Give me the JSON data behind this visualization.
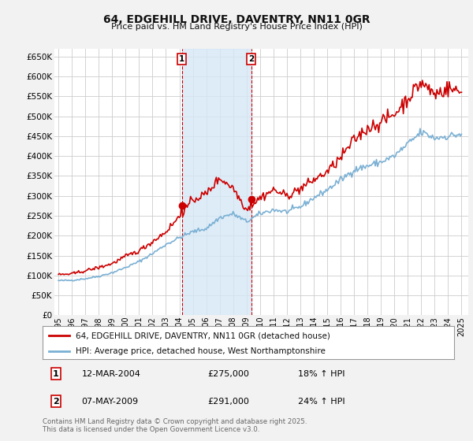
{
  "title": "64, EDGEHILL DRIVE, DAVENTRY, NN11 0GR",
  "subtitle": "Price paid vs. HM Land Registry's House Price Index (HPI)",
  "ylabel_ticks": [
    "£0",
    "£50K",
    "£100K",
    "£150K",
    "£200K",
    "£250K",
    "£300K",
    "£350K",
    "£400K",
    "£450K",
    "£500K",
    "£550K",
    "£600K",
    "£650K"
  ],
  "ytick_values": [
    0,
    50000,
    100000,
    150000,
    200000,
    250000,
    300000,
    350000,
    400000,
    450000,
    500000,
    550000,
    600000,
    650000
  ],
  "ylim": [
    0,
    670000
  ],
  "xlim_left": 1994.7,
  "xlim_right": 2025.5,
  "background_color": "#f2f2f2",
  "plot_bg_color": "#ffffff",
  "grid_color": "#cccccc",
  "red_line_color": "#cc0000",
  "blue_line_color": "#7ab0d4",
  "shade_color": "#d6e8f5",
  "legend_label_red": "64, EDGEHILL DRIVE, DAVENTRY, NN11 0GR (detached house)",
  "legend_label_blue": "HPI: Average price, detached house, West Northamptonshire",
  "marker1_date": "12-MAR-2004",
  "marker1_price": "£275,000",
  "marker1_pct": "18% ↑ HPI",
  "marker2_date": "07-MAY-2009",
  "marker2_price": "£291,000",
  "marker2_pct": "24% ↑ HPI",
  "footer": "Contains HM Land Registry data © Crown copyright and database right 2025.\nThis data is licensed under the Open Government Licence v3.0.",
  "marker1_x": 2004.2,
  "marker1_y": 275000,
  "marker2_x": 2009.35,
  "marker2_y": 291000,
  "xtick_years": [
    1995,
    1996,
    1997,
    1998,
    1999,
    2000,
    2001,
    2002,
    2003,
    2004,
    2005,
    2006,
    2007,
    2008,
    2009,
    2010,
    2011,
    2012,
    2013,
    2014,
    2015,
    2016,
    2017,
    2018,
    2019,
    2020,
    2021,
    2022,
    2023,
    2024,
    2025
  ]
}
